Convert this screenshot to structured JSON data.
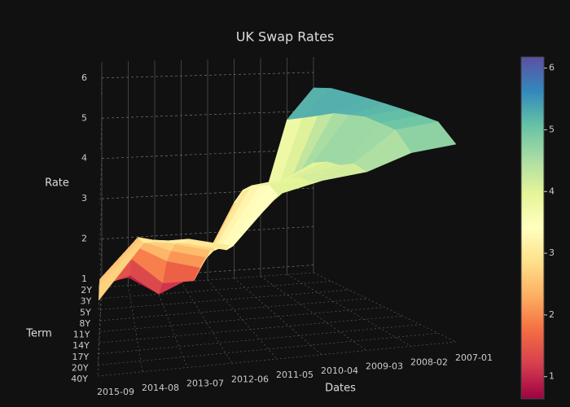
{
  "chart_data": {
    "type": "surface",
    "title": "UK Swap Rates",
    "x_label": "Dates",
    "y_label": "Term",
    "z_label": "Rate",
    "x": [
      "2015-09",
      "2014-08",
      "2013-07",
      "2012-06",
      "2011-05",
      "2010-04",
      "2009-03",
      "2008-02",
      "2007-01"
    ],
    "y": [
      "2Y",
      "3Y",
      "5Y",
      "8Y",
      "11Y",
      "14Y",
      "17Y",
      "20Y",
      "40Y"
    ],
    "z": [
      [
        0.9,
        1.0,
        0.6,
        1.0,
        1.6,
        1.8,
        2.5,
        4.8,
        5.6
      ],
      [
        1.1,
        1.3,
        0.8,
        1.1,
        2.0,
        2.2,
        2.9,
        4.9,
        5.6
      ],
      [
        1.4,
        1.9,
        1.3,
        1.3,
        2.6,
        2.9,
        3.3,
        5.0,
        5.5
      ],
      [
        1.7,
        2.4,
        2.0,
        1.8,
        3.2,
        3.4,
        3.8,
        5.1,
        5.4
      ],
      [
        1.9,
        2.7,
        2.4,
        2.2,
        3.6,
        3.7,
        4.1,
        5.1,
        5.3
      ],
      [
        2.1,
        2.9,
        2.7,
        2.5,
        3.8,
        3.9,
        4.2,
        5.1,
        5.2
      ],
      [
        2.2,
        3.0,
        2.9,
        2.7,
        3.9,
        4.0,
        4.2,
        5.0,
        5.1
      ],
      [
        2.3,
        3.1,
        3.0,
        2.8,
        4.0,
        4.0,
        4.3,
        4.9,
        5.0
      ],
      [
        2.2,
        3.2,
        3.2,
        3.0,
        3.9,
        4.1,
        4.2,
        4.5,
        4.6
      ]
    ],
    "zlim": [
      0.8,
      6.4
    ],
    "zticks": [
      1,
      2,
      3,
      4,
      5,
      6
    ],
    "cmin": 0.64,
    "cmax": 6.18,
    "colorscale": [
      [
        0,
        "#9e0142"
      ],
      [
        0.1,
        "#d53e4f"
      ],
      [
        0.2,
        "#f46d43"
      ],
      [
        0.3,
        "#fdae61"
      ],
      [
        0.4,
        "#fee08b"
      ],
      [
        0.5,
        "#ffffbf"
      ],
      [
        0.6,
        "#e6f598"
      ],
      [
        0.7,
        "#abdda4"
      ],
      [
        0.8,
        "#66c2a5"
      ],
      [
        0.9,
        "#3288bd"
      ],
      [
        1,
        "#5e4fa2"
      ]
    ],
    "colorbar": true
  }
}
